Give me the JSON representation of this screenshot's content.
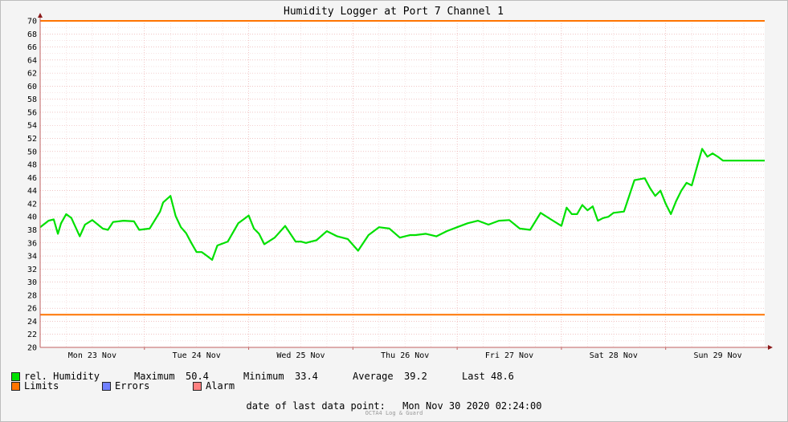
{
  "chart_data": {
    "type": "line",
    "title": "Humidity Logger at Port 7 Channel 1",
    "ylim": [
      20,
      70
    ],
    "y_ticks": [
      20,
      22,
      24,
      26,
      28,
      30,
      32,
      34,
      36,
      38,
      40,
      42,
      44,
      46,
      48,
      50,
      52,
      54,
      56,
      58,
      60,
      62,
      64,
      66,
      68,
      70
    ],
    "x_categories": [
      "Mon 23 Nov",
      "Tue 24 Nov",
      "Wed 25 Nov",
      "Thu 26 Nov",
      "Fri 27 Nov",
      "Sat 28 Nov",
      "Sun 29 Nov"
    ],
    "x_range_days": [
      0,
      6.95
    ],
    "limits": [
      70,
      25
    ],
    "series": [
      {
        "name": "rel. Humidity",
        "color": "#00e000",
        "x_days": [
          0,
          0.08,
          0.13,
          0.17,
          0.2,
          0.25,
          0.3,
          0.38,
          0.43,
          0.5,
          0.6,
          0.65,
          0.7,
          0.8,
          0.9,
          0.95,
          1.05,
          1.15,
          1.18,
          1.25,
          1.3,
          1.35,
          1.4,
          1.45,
          1.5,
          1.55,
          1.6,
          1.65,
          1.7,
          1.8,
          1.9,
          1.95,
          2.0,
          2.05,
          2.1,
          2.15,
          2.25,
          2.35,
          2.45,
          2.5,
          2.55,
          2.6,
          2.65,
          2.75,
          2.85,
          2.95,
          3.05,
          3.15,
          3.25,
          3.35,
          3.45,
          3.5,
          3.55,
          3.6,
          3.7,
          3.8,
          3.9,
          4.0,
          4.1,
          4.2,
          4.3,
          4.4,
          4.5,
          4.6,
          4.7,
          4.8,
          4.9,
          5.0,
          5.05,
          5.1,
          5.15,
          5.2,
          5.25,
          5.3,
          5.35,
          5.4,
          5.45,
          5.5,
          5.6,
          5.7,
          5.8,
          5.85,
          5.9,
          5.95,
          6.0,
          6.05,
          6.1,
          6.15,
          6.2,
          6.25,
          6.3,
          6.35,
          6.4,
          6.45,
          6.5,
          6.55,
          6.6,
          6.65,
          6.7,
          6.8,
          6.9,
          6.95
        ],
        "values": [
          38.4,
          39.4,
          39.6,
          37.4,
          39.0,
          40.4,
          39.8,
          37.0,
          38.8,
          39.5,
          38.2,
          38.0,
          39.2,
          39.4,
          39.3,
          38.0,
          38.2,
          40.8,
          42.2,
          43.2,
          40.1,
          38.4,
          37.5,
          36.0,
          34.6,
          34.6,
          34.0,
          33.4,
          35.6,
          36.2,
          39.0,
          39.6,
          40.2,
          38.2,
          37.4,
          35.8,
          36.8,
          38.6,
          36.2,
          36.2,
          36.0,
          36.2,
          36.4,
          37.8,
          37.0,
          36.6,
          34.8,
          37.2,
          38.4,
          38.2,
          36.8,
          37.0,
          37.2,
          37.2,
          37.4,
          37.0,
          37.8,
          38.4,
          39.0,
          39.4,
          38.8,
          39.4,
          39.5,
          38.2,
          38.0,
          40.6,
          39.6,
          38.6,
          41.4,
          40.4,
          40.4,
          41.8,
          41.0,
          41.6,
          39.4,
          39.8,
          40.0,
          40.6,
          40.8,
          45.6,
          45.9,
          44.4,
          43.2,
          44.0,
          42.0,
          40.4,
          42.4,
          44.0,
          45.2,
          44.8,
          47.6,
          50.4,
          49.2,
          49.7,
          49.2,
          48.6,
          48.6,
          48.6,
          48.6,
          48.6,
          48.6,
          48.6
        ]
      }
    ],
    "limits_label": "Limits",
    "limits_color": "#ff7400",
    "errors_label": "Errors",
    "errors_color": "#7080ff",
    "alarm_label": "Alarm",
    "alarm_color": "#ff8080"
  },
  "legend": {
    "series_label": "rel. Humidity",
    "maximum_label": "Maximum",
    "maximum_value": "50.4",
    "minimum_label": "Minimum",
    "minimum_value": "33.4",
    "average_label": "Average",
    "average_value": "39.2",
    "last_label": "Last",
    "last_value": "48.6"
  },
  "footer": {
    "label": "date of last data point:",
    "value": "Mon Nov 30 2020 02:24:00",
    "watermark": "OCTA4 Log & Guard"
  }
}
